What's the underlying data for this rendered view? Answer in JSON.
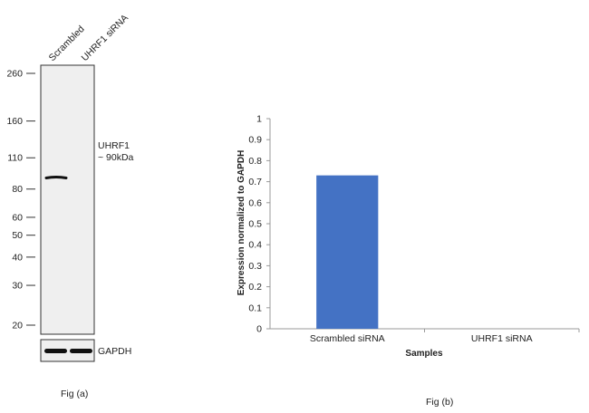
{
  "blot": {
    "lanes": [
      "Scrambled",
      "UHRF1 siRNA"
    ],
    "mw_markers": [
      {
        "label": "260",
        "kda": 260
      },
      {
        "label": "160",
        "kda": 160
      },
      {
        "label": "110",
        "kda": 110
      },
      {
        "label": "80",
        "kda": 80
      },
      {
        "label": "60",
        "kda": 60
      },
      {
        "label": "50",
        "kda": 50
      },
      {
        "label": "40",
        "kda": 40
      },
      {
        "label": "30",
        "kda": 30
      },
      {
        "label": "20",
        "kda": 20
      }
    ],
    "target_label_line1": "UHRF1",
    "target_label_line2": "~ 90kDa",
    "band_kda": 90,
    "loading_control": "GAPDH",
    "caption": "Fig (a)"
  },
  "chart_data": {
    "type": "bar",
    "categories": [
      "Scrambled siRNA",
      "UHRF1 siRNA"
    ],
    "values": [
      0.73,
      0
    ],
    "xlabel": "Samples",
    "ylabel": "Expression normalized to GAPDH",
    "ylim": [
      0,
      1
    ],
    "yticks": [
      "0",
      "0.1",
      "0.2",
      "0.3",
      "0.4",
      "0.5",
      "0.6",
      "0.7",
      "0.8",
      "0.9",
      "1"
    ],
    "grid": false,
    "legend": "none",
    "bar_color": "#4472c4",
    "caption": "Fig (b)"
  }
}
